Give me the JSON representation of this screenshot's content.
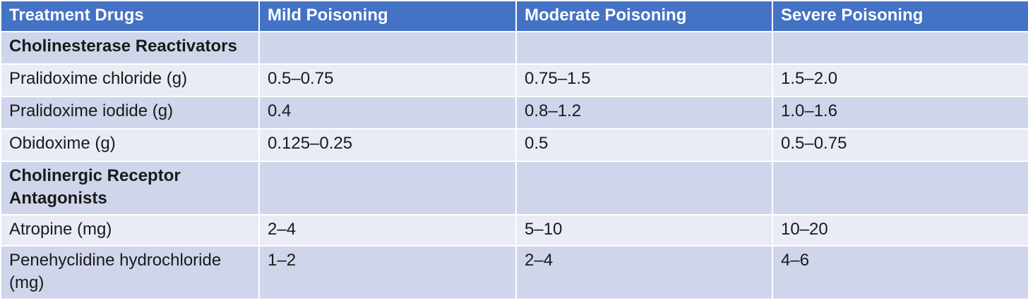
{
  "table": {
    "headers": [
      "Treatment Drugs",
      "Mild Poisoning",
      "Moderate Poisoning",
      "Severe Poisoning"
    ],
    "rows": [
      {
        "type": "section",
        "cells": [
          "Cholinesterase Reactivators",
          "",
          "",
          ""
        ]
      },
      {
        "type": "data",
        "cells": [
          "Pralidoxime chloride (g)",
          "0.5–0.75",
          "0.75–1.5",
          "1.5–2.0"
        ]
      },
      {
        "type": "data",
        "cells": [
          "Pralidoxime iodide (g)",
          "0.4",
          "0.8–1.2",
          "1.0–1.6"
        ]
      },
      {
        "type": "data",
        "cells": [
          "Obidoxime (g)",
          "0.125–0.25",
          "0.5",
          "0.5–0.75"
        ]
      },
      {
        "type": "section",
        "cells": [
          "Cholinergic Receptor Antagonists",
          "",
          "",
          ""
        ]
      },
      {
        "type": "data",
        "cells": [
          "Atropine (mg)",
          "2–4",
          "5–10",
          "10–20"
        ]
      },
      {
        "type": "data",
        "cells": [
          "Penehyclidine hydrochloride (mg)",
          "1–2",
          "2–4",
          "4–6"
        ]
      }
    ]
  },
  "colors": {
    "header_bg": "#4472c4",
    "row_dark": "#cfd5ea",
    "row_light": "#e9ebf5"
  }
}
